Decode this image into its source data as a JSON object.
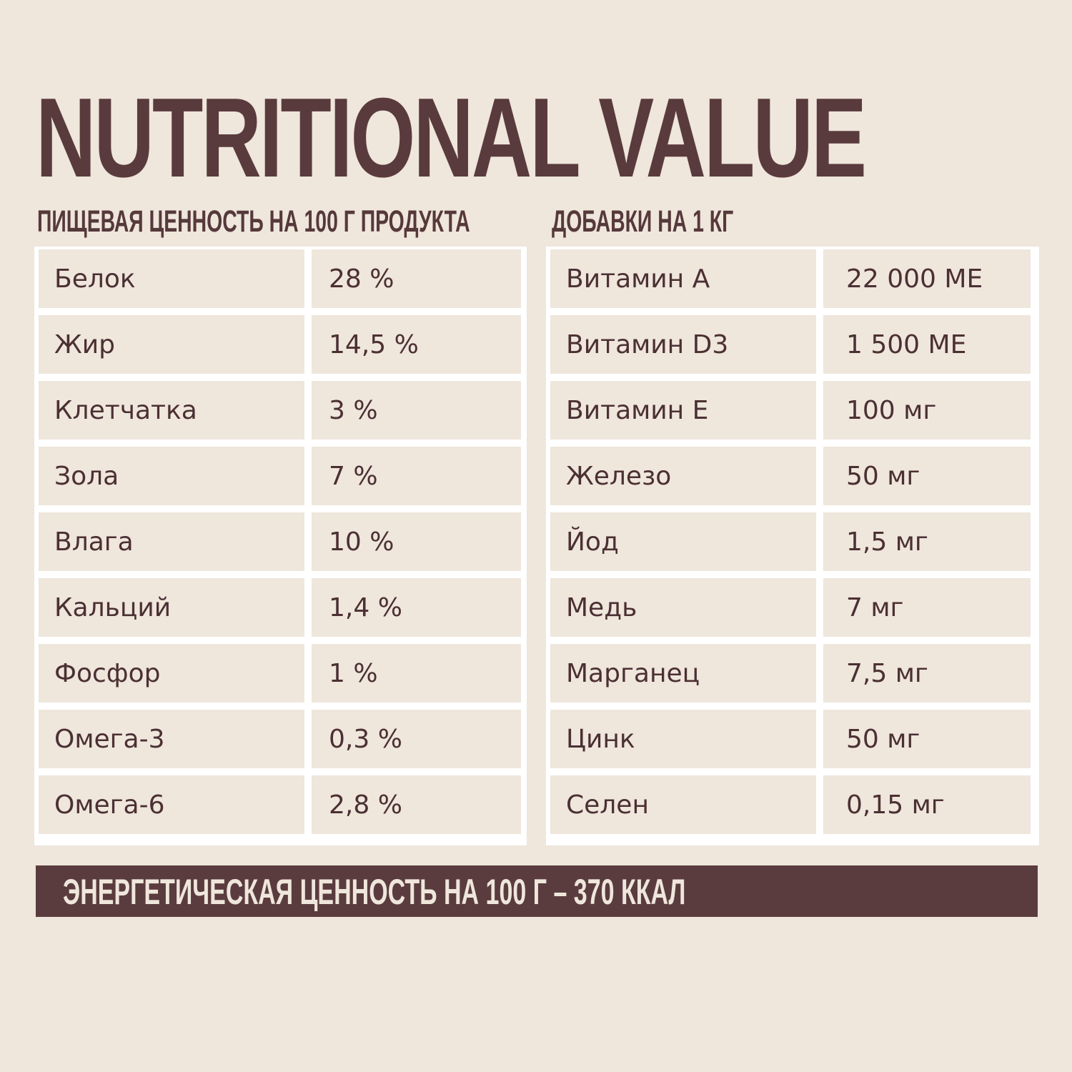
{
  "header": {
    "title": "NUTRITIONAL VALUE"
  },
  "nutrition": {
    "heading": "ПИЩЕВАЯ ЦЕННОСТЬ НА 100 Г ПРОДУКТА",
    "rows": [
      {
        "name": "Белок",
        "value": "28 %"
      },
      {
        "name": "Жир",
        "value": "14,5 %"
      },
      {
        "name": "Клетчатка",
        "value": "3 %"
      },
      {
        "name": "Зола",
        "value": "7 %"
      },
      {
        "name": "Влага",
        "value": "10 %"
      },
      {
        "name": "Кальций",
        "value": "1,4 %"
      },
      {
        "name": "Фосфор",
        "value": "1 %"
      },
      {
        "name": "Омега-3",
        "value": "0,3 %"
      },
      {
        "name": "Омега-6",
        "value": "2,8 %"
      }
    ]
  },
  "additives": {
    "heading": "ДОБАВКИ НА 1 КГ",
    "rows": [
      {
        "name": "Витамин А",
        "value": "22 000 МЕ"
      },
      {
        "name": "Витамин D3",
        "value": "1 500 МЕ"
      },
      {
        "name": "Витамин Е",
        "value": "100 мг"
      },
      {
        "name": "Железо",
        "value": "50 мг"
      },
      {
        "name": "Йод",
        "value": "1,5 мг"
      },
      {
        "name": "Медь",
        "value": "7 мг"
      },
      {
        "name": "Марганец",
        "value": "7,5 мг"
      },
      {
        "name": "Цинк",
        "value": "50 мг"
      },
      {
        "name": "Селен",
        "value": "0,15 мг"
      }
    ]
  },
  "energy": {
    "text": "ЭНЕРГЕТИЧЕСКАЯ ЦЕННОСТЬ НА 100 Г – 370 ККАЛ"
  },
  "colors": {
    "background": "#efe6dc",
    "accent": "#5a3c3f",
    "table_border": "#ffffff"
  }
}
